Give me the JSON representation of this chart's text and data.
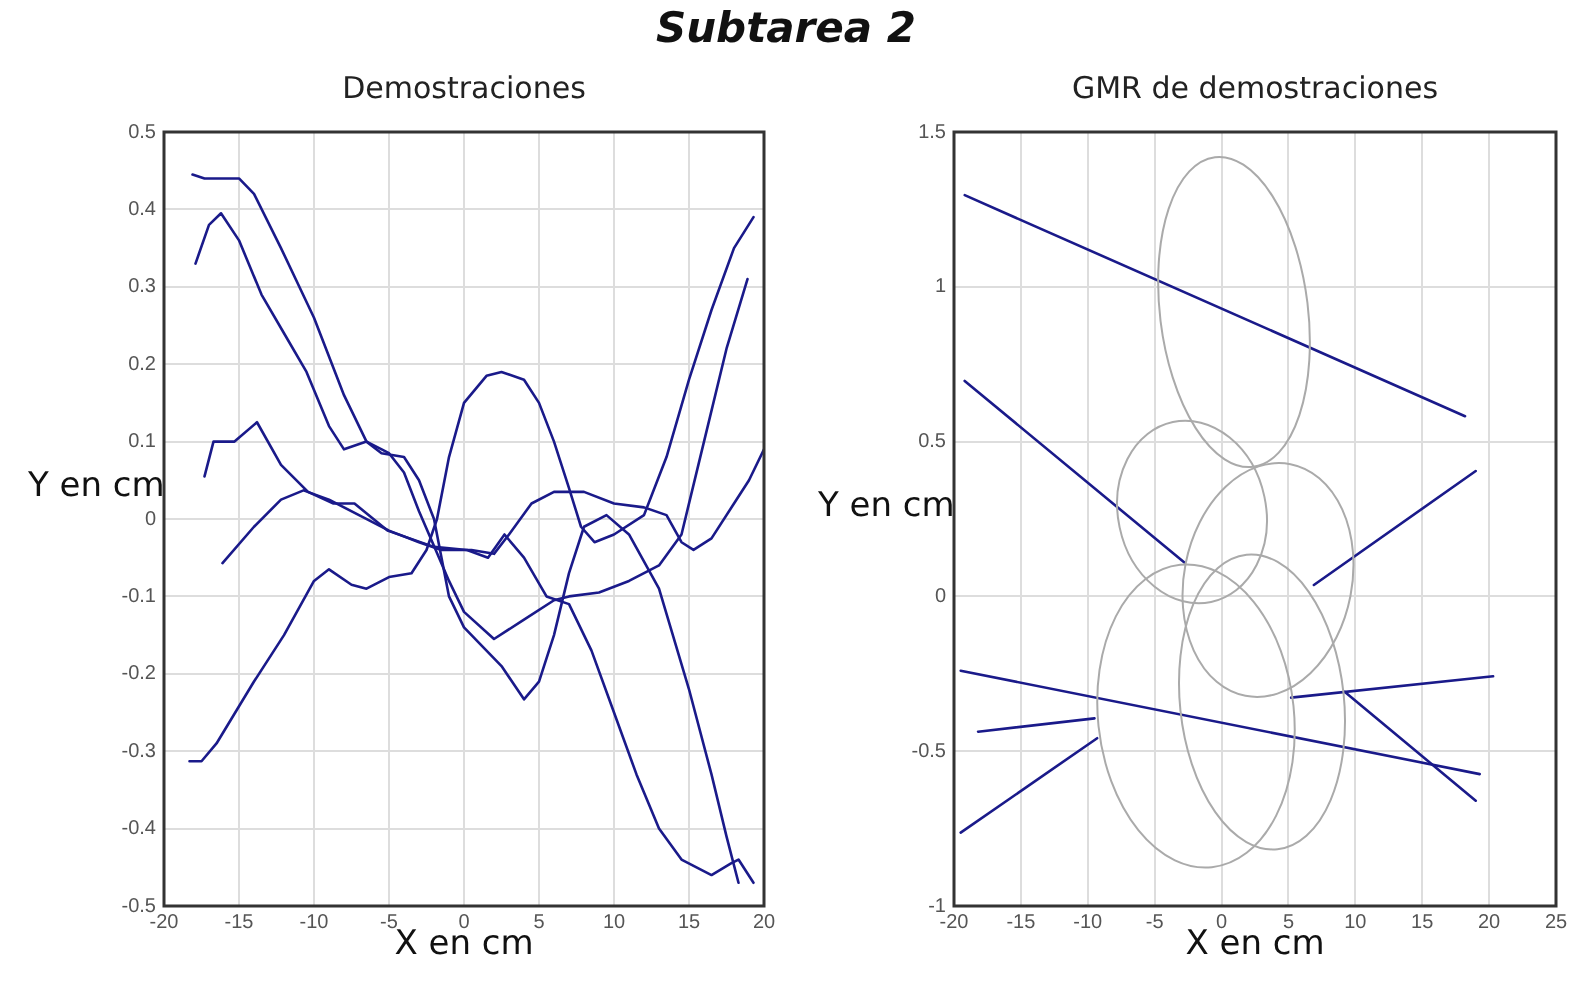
{
  "chart_data": [
    {
      "type": "line",
      "title": "Demostraciones",
      "xlabel": "X en cm",
      "ylabel": "Y en cm",
      "annotations": [
        "Subtarea 2"
      ],
      "xlim": [
        -20,
        20
      ],
      "xticks": [
        -20,
        -15,
        -10,
        -5,
        0,
        5,
        10,
        15,
        20
      ],
      "ylim": [
        -0.5,
        0.5
      ],
      "yticks": [
        -0.5,
        -0.4,
        -0.3,
        -0.2,
        -0.1,
        0,
        0.1,
        0.2,
        0.3,
        0.4,
        0.5
      ],
      "grid": true,
      "marker": "none",
      "line_style": "solid",
      "series": [
        {
          "color": "#1a1a8a",
          "x": [
            -18.1,
            -17.3,
            -15,
            -14,
            -12.2,
            -10,
            -8,
            -6.5,
            -5.5,
            -4,
            -3,
            -2,
            -1,
            0,
            1,
            2.5,
            4,
            5,
            6,
            7,
            8,
            9.5,
            11,
            13,
            15,
            16.5,
            17.5,
            18.3
          ],
          "values": [
            0.445,
            0.44,
            0.44,
            0.42,
            0.35,
            0.26,
            0.16,
            0.1,
            0.085,
            0.08,
            0.05,
            0,
            -0.1,
            -0.14,
            -0.16,
            -0.19,
            -0.233,
            -0.21,
            -0.15,
            -0.07,
            -0.01,
            0.005,
            -0.02,
            -0.09,
            -0.22,
            -0.33,
            -0.41,
            -0.47
          ]
        },
        {
          "color": "#1a1a8a",
          "x": [
            -17.9,
            -17,
            -16.2,
            -15,
            -13.5,
            -12,
            -10.5,
            -9,
            -8,
            -6.5,
            -5,
            -4,
            -3,
            -2,
            -1,
            0,
            2,
            4,
            6,
            7,
            9,
            11,
            13,
            14.5,
            16,
            17.5,
            18.9
          ],
          "values": [
            0.33,
            0.38,
            0.395,
            0.36,
            0.29,
            0.24,
            0.19,
            0.12,
            0.09,
            0.1,
            0.085,
            0.06,
            0.01,
            -0.035,
            -0.08,
            -0.12,
            -0.155,
            -0.13,
            -0.105,
            -0.1,
            -0.095,
            -0.08,
            -0.06,
            -0.02,
            0.1,
            0.22,
            0.31
          ]
        },
        {
          "color": "#1a1a8a",
          "x": [
            -17.3,
            -16.7,
            -15.3,
            -13.8,
            -12.2,
            -10.4,
            -8.7,
            -7.3,
            -5.1,
            -2,
            0.2,
            1.6,
            2.7,
            4,
            5.5,
            7,
            8.5,
            10,
            11.5,
            13,
            14.5,
            16.5,
            17.8,
            18.3,
            19.3
          ],
          "values": [
            0.055,
            0.1,
            0.1,
            0.125,
            0.07,
            0.035,
            0.02,
            0.02,
            -0.015,
            -0.036,
            -0.04,
            -0.05,
            -0.02,
            -0.05,
            -0.1,
            -0.11,
            -0.17,
            -0.25,
            -0.33,
            -0.4,
            -0.44,
            -0.46,
            -0.445,
            -0.44,
            -0.47
          ]
        },
        {
          "color": "#1a1a8a",
          "x": [
            -16.1,
            -14,
            -12.2,
            -10.7,
            -9,
            -7,
            -5,
            -3,
            -1.5,
            0.5,
            2,
            3,
            4.5,
            6,
            8,
            10,
            12,
            13.5,
            14.5,
            15.3,
            16.5,
            18,
            19,
            20
          ],
          "values": [
            -0.057,
            -0.01,
            0.025,
            0.037,
            0.025,
            0.005,
            -0.015,
            -0.03,
            -0.04,
            -0.04,
            -0.045,
            -0.02,
            0.02,
            0.035,
            0.035,
            0.02,
            0.015,
            0.005,
            -0.03,
            -0.04,
            -0.025,
            0.02,
            0.05,
            0.09
          ]
        },
        {
          "color": "#1a1a8a",
          "x": [
            -18.3,
            -17.5,
            -16.5,
            -14,
            -12,
            -10,
            -9,
            -7.5,
            -6.5,
            -5,
            -3.5,
            -2.5,
            -1.8,
            -1,
            0,
            1.5,
            2.5,
            4,
            5,
            6,
            7,
            7.8,
            8.7,
            10,
            12,
            13.5,
            15,
            16.5,
            18,
            19.3
          ],
          "values": [
            -0.313,
            -0.313,
            -0.29,
            -0.21,
            -0.15,
            -0.08,
            -0.065,
            -0.085,
            -0.09,
            -0.075,
            -0.07,
            -0.04,
            0,
            0.08,
            0.15,
            0.185,
            0.19,
            0.18,
            0.15,
            0.1,
            0.04,
            -0.01,
            -0.03,
            -0.02,
            0.005,
            0.08,
            0.18,
            0.27,
            0.35,
            0.39
          ]
        }
      ]
    },
    {
      "type": "line",
      "title": "GMR de demostraciones",
      "xlabel": "X en cm",
      "ylabel": "Y en cm",
      "xlim": [
        -20,
        25
      ],
      "xticks": [
        -20,
        -15,
        -10,
        -5,
        0,
        5,
        10,
        15,
        20,
        25
      ],
      "ylim": [
        -1,
        1.5
      ],
      "yticks": [
        -1,
        -0.5,
        0,
        0.5,
        1,
        1.5
      ],
      "grid": true,
      "marker": "none",
      "line_style": "solid",
      "series": [
        {
          "color": "#1a1a8a",
          "x": [
            -19.2,
            18.2
          ],
          "values": [
            1.296,
            0.582
          ]
        },
        {
          "color": "#1a1a8a",
          "x": [
            -19.2,
            -2.8
          ],
          "values": [
            0.696,
            0.11
          ]
        },
        {
          "color": "#1a1a8a",
          "x": [
            6.9,
            19
          ],
          "values": [
            0.037,
            0.405
          ]
        },
        {
          "color": "#1a1a8a",
          "x": [
            -19.5,
            19.3
          ],
          "values": [
            -0.24,
            -0.574
          ]
        },
        {
          "color": "#1a1a8a",
          "x": [
            -18.2,
            -9.5
          ],
          "values": [
            -0.437,
            -0.394
          ]
        },
        {
          "color": "#1a1a8a",
          "x": [
            -19.5,
            -9.3
          ],
          "values": [
            -0.763,
            -0.458
          ]
        },
        {
          "color": "#1a1a8a",
          "x": [
            5.2,
            20.3
          ],
          "values": [
            -0.327,
            -0.258
          ]
        },
        {
          "color": "#1a1a8a",
          "x": [
            9.2,
            19
          ],
          "values": [
            -0.308,
            -0.66
          ]
        }
      ]
    }
  ]
}
